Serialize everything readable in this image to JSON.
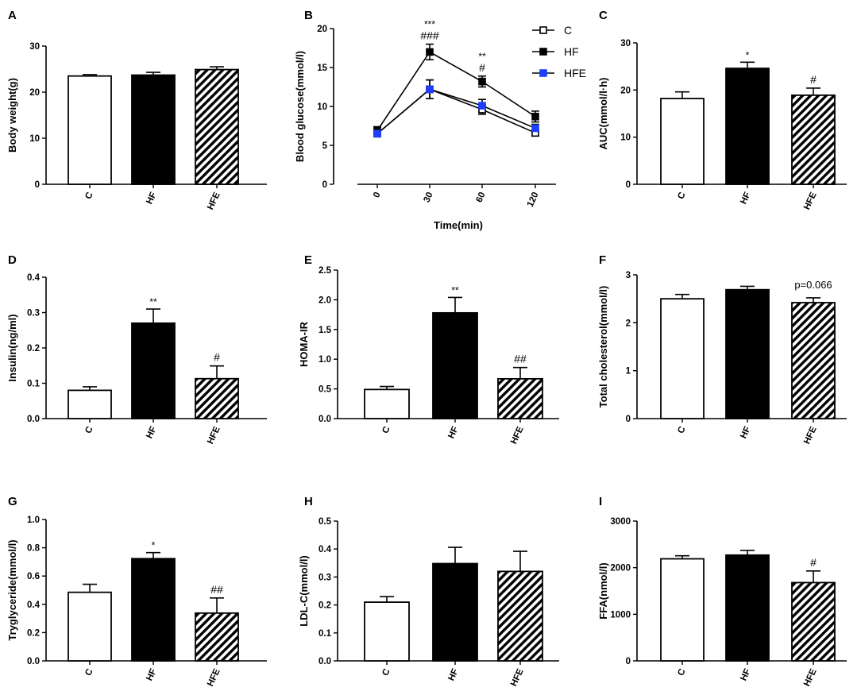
{
  "colors": {
    "black": "#000000",
    "white": "#ffffff",
    "hfe_blue": "#1f3fff"
  },
  "chart_data": [
    {
      "id": "A",
      "panel_label": "A",
      "type": "bar",
      "ylabel": "Body weight(g)",
      "xlabel": "",
      "ylim": [
        0,
        30
      ],
      "yticks": [
        "0",
        "10",
        "20",
        "30"
      ],
      "categories": [
        "C",
        "HF",
        "HFE"
      ],
      "styles": [
        "white",
        "black",
        "hatched"
      ],
      "values": [
        23.5,
        23.7,
        24.9
      ],
      "errors": [
        0.3,
        0.6,
        0.6
      ],
      "annotations": [
        "",
        "",
        ""
      ]
    },
    {
      "id": "B",
      "panel_label": "B",
      "type": "line",
      "ylabel": "Blood glucose(mmol/l)",
      "xlabel": "Time(min)",
      "ylim": [
        0,
        20
      ],
      "yticks": [
        "0",
        "5",
        "10",
        "15",
        "20"
      ],
      "categories": [
        "0",
        "30",
        "60",
        "120"
      ],
      "series": [
        {
          "name": "C",
          "marker": "open-square",
          "values": [
            6.5,
            12.2,
            9.6,
            6.6
          ],
          "errors": [
            0.4,
            1.2,
            0.6,
            0.4
          ]
        },
        {
          "name": "HF",
          "marker": "filled-square",
          "values": [
            6.9,
            17.0,
            13.2,
            8.7
          ],
          "errors": [
            0.5,
            1.0,
            0.7,
            0.7
          ]
        },
        {
          "name": "HFE",
          "marker": "blue-square",
          "values": [
            6.5,
            12.2,
            10.1,
            7.2
          ],
          "errors": [
            0.4,
            1.2,
            0.8,
            0.5
          ]
        }
      ],
      "annotations": [
        {
          "at": 1,
          "lines": [
            "***",
            "###"
          ]
        },
        {
          "at": 2,
          "lines": [
            "**",
            "#"
          ]
        }
      ]
    },
    {
      "id": "C",
      "panel_label": "C",
      "type": "bar",
      "ylabel": "AUC(mmol/l·h)",
      "xlabel": "",
      "ylim": [
        0,
        30
      ],
      "yticks": [
        "0",
        "10",
        "20",
        "30"
      ],
      "categories": [
        "C",
        "HF",
        "HFE"
      ],
      "styles": [
        "white",
        "black",
        "hatched"
      ],
      "values": [
        18.2,
        24.6,
        18.9
      ],
      "errors": [
        1.4,
        1.3,
        1.5
      ],
      "annotations": [
        "",
        "*",
        "#"
      ]
    },
    {
      "id": "D",
      "panel_label": "D",
      "type": "bar",
      "ylabel": "Insulin(ng/ml)",
      "xlabel": "",
      "ylim": [
        0,
        0.4
      ],
      "yticks": [
        "0.0",
        "0.1",
        "0.2",
        "0.3",
        "0.4"
      ],
      "categories": [
        "C",
        "HF",
        "HFE"
      ],
      "styles": [
        "white",
        "black",
        "hatched"
      ],
      "values": [
        0.08,
        0.27,
        0.113
      ],
      "errors": [
        0.01,
        0.04,
        0.036
      ],
      "annotations": [
        "",
        "**",
        "#"
      ]
    },
    {
      "id": "E",
      "panel_label": "E",
      "type": "bar",
      "ylabel": "HOMA-IR",
      "xlabel": "",
      "ylim": [
        0,
        2.5
      ],
      "yticks": [
        "0.0",
        "0.5",
        "1.0",
        "1.5",
        "2.0",
        "2.5"
      ],
      "categories": [
        "C",
        "HF",
        "HFE"
      ],
      "styles": [
        "white",
        "black",
        "hatched"
      ],
      "values": [
        0.49,
        1.78,
        0.67
      ],
      "errors": [
        0.05,
        0.26,
        0.19
      ],
      "annotations": [
        "",
        "**",
        "##"
      ]
    },
    {
      "id": "F",
      "panel_label": "F",
      "type": "bar",
      "ylabel": "Total cholesterol(mmol/l)",
      "xlabel": "",
      "ylim": [
        0,
        3
      ],
      "yticks": [
        "0",
        "1",
        "2",
        "3"
      ],
      "categories": [
        "C",
        "HF",
        "HFE"
      ],
      "styles": [
        "white",
        "black",
        "hatched"
      ],
      "values": [
        2.5,
        2.69,
        2.42
      ],
      "errors": [
        0.09,
        0.07,
        0.1
      ],
      "annotations": [
        "",
        "",
        ""
      ],
      "note": "p=0.066"
    },
    {
      "id": "G",
      "panel_label": "G",
      "type": "bar",
      "ylabel": "Tryglyceride(mmol/l)",
      "xlabel": "",
      "ylim": [
        0,
        1.0
      ],
      "yticks": [
        "0.0",
        "0.2",
        "0.4",
        "0.6",
        "0.8",
        "1.0"
      ],
      "categories": [
        "C",
        "HF",
        "HFE"
      ],
      "styles": [
        "white",
        "black",
        "hatched"
      ],
      "values": [
        0.485,
        0.723,
        0.338
      ],
      "errors": [
        0.057,
        0.043,
        0.107
      ],
      "annotations": [
        "",
        "*",
        "##"
      ]
    },
    {
      "id": "H",
      "panel_label": "H",
      "type": "bar",
      "ylabel": "LDL-C(mmol/l)",
      "xlabel": "",
      "ylim": [
        0,
        0.5
      ],
      "yticks": [
        "0.0",
        "0.1",
        "0.2",
        "0.3",
        "0.4",
        "0.5"
      ],
      "categories": [
        "C",
        "HF",
        "HFE"
      ],
      "styles": [
        "white",
        "black",
        "hatched"
      ],
      "values": [
        0.21,
        0.348,
        0.32
      ],
      "errors": [
        0.02,
        0.058,
        0.072
      ],
      "annotations": [
        "",
        "",
        ""
      ]
    },
    {
      "id": "I",
      "panel_label": "I",
      "type": "bar",
      "ylabel": "FFA(nmol/l)",
      "xlabel": "",
      "ylim": [
        0,
        3000
      ],
      "yticks": [
        "0",
        "1000",
        "2000",
        "3000"
      ],
      "categories": [
        "C",
        "HF",
        "HFE"
      ],
      "styles": [
        "white",
        "black",
        "hatched"
      ],
      "values": [
        2190,
        2270,
        1680
      ],
      "errors": [
        65,
        100,
        250
      ],
      "annotations": [
        "",
        "",
        "#"
      ]
    }
  ]
}
